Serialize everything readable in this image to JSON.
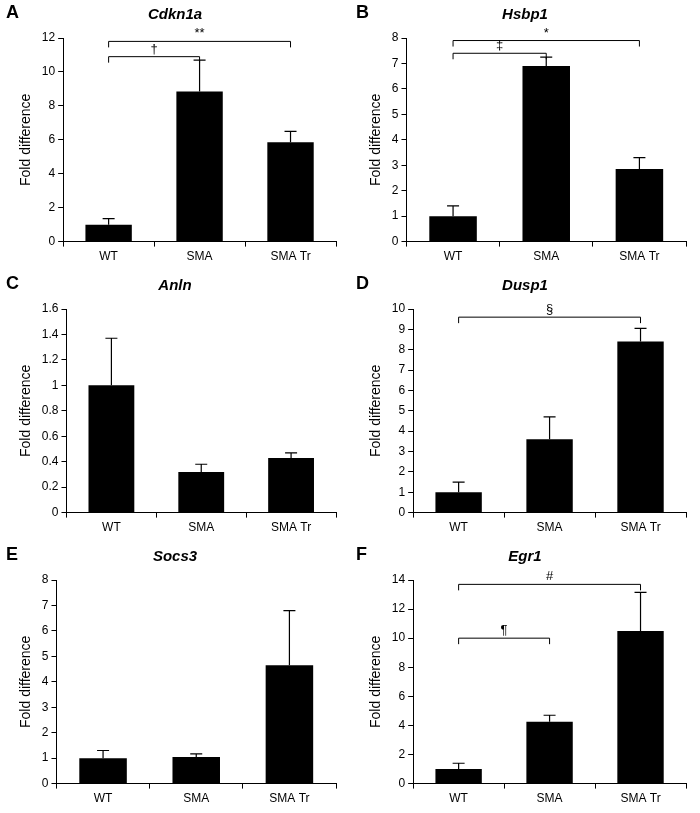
{
  "chart_data": [
    {
      "panel": "A",
      "title": "Cdkn1a",
      "type": "bar",
      "categories": [
        "WT",
        "SMA",
        "SMA Tr"
      ],
      "values": [
        1.0,
        8.85,
        5.85
      ],
      "errors": [
        0.35,
        1.85,
        0.65
      ],
      "color": "#000000",
      "y_label": "Fold difference",
      "ylim": [
        0,
        12
      ],
      "yticks": [
        0,
        2,
        4,
        6,
        8,
        10,
        12
      ],
      "grid": false,
      "significance": [
        {
          "from": "WT",
          "to": "SMA",
          "y": 10.9,
          "label": "†"
        },
        {
          "from": "WT",
          "to": "SMA Tr",
          "y": 11.8,
          "label": "**"
        }
      ]
    },
    {
      "panel": "B",
      "title": "Hsbp1",
      "type": "bar",
      "categories": [
        "WT",
        "SMA",
        "SMA Tr"
      ],
      "values": [
        1.0,
        6.9,
        2.85
      ],
      "errors": [
        0.4,
        0.35,
        0.45
      ],
      "color": "#000000",
      "y_label": "Fold difference",
      "ylim": [
        0,
        8
      ],
      "yticks": [
        0,
        1,
        2,
        3,
        4,
        5,
        6,
        7,
        8
      ],
      "grid": false,
      "significance": [
        {
          "from": "WT",
          "to": "SMA",
          "y": 7.4,
          "label": "‡"
        },
        {
          "from": "WT",
          "to": "SMA Tr",
          "y": 7.9,
          "label": "*"
        }
      ]
    },
    {
      "panel": "C",
      "title": "Anln",
      "type": "bar",
      "categories": [
        "WT",
        "SMA",
        "SMA Tr"
      ],
      "values": [
        1.0,
        0.32,
        0.43
      ],
      "errors": [
        0.37,
        0.06,
        0.04
      ],
      "color": "#000000",
      "y_label": "Fold difference",
      "ylim": [
        0,
        1.6
      ],
      "yticks": [
        0,
        0.2,
        0.4,
        0.6,
        0.8,
        1,
        1.2,
        1.4,
        1.6
      ],
      "grid": false,
      "significance": []
    },
    {
      "panel": "D",
      "title": "Dusp1",
      "type": "bar",
      "categories": [
        "WT",
        "SMA",
        "SMA Tr"
      ],
      "values": [
        1.0,
        3.6,
        8.4
      ],
      "errors": [
        0.5,
        1.1,
        0.65
      ],
      "color": "#000000",
      "y_label": "Fold difference",
      "ylim": [
        0,
        10
      ],
      "yticks": [
        0,
        1,
        2,
        3,
        4,
        5,
        6,
        7,
        8,
        9,
        10
      ],
      "grid": false,
      "significance": [
        {
          "from": "WT",
          "to": "SMA Tr",
          "y": 9.6,
          "label": "§"
        }
      ]
    },
    {
      "panel": "E",
      "title": "Socs3",
      "type": "bar",
      "categories": [
        "WT",
        "SMA",
        "SMA Tr"
      ],
      "values": [
        1.0,
        1.05,
        4.65
      ],
      "errors": [
        0.3,
        0.12,
        2.15
      ],
      "color": "#000000",
      "y_label": "Fold difference",
      "ylim": [
        0,
        8
      ],
      "yticks": [
        0,
        1,
        2,
        3,
        4,
        5,
        6,
        7,
        8
      ],
      "grid": false,
      "significance": []
    },
    {
      "panel": "F",
      "title": "Egr1",
      "type": "bar",
      "categories": [
        "WT",
        "SMA",
        "SMA Tr"
      ],
      "values": [
        1.0,
        4.25,
        10.5
      ],
      "errors": [
        0.4,
        0.45,
        2.65
      ],
      "color": "#000000",
      "y_label": "Fold difference",
      "ylim": [
        0,
        14
      ],
      "yticks": [
        0,
        2,
        4,
        6,
        8,
        10,
        12,
        14
      ],
      "grid": false,
      "significance": [
        {
          "from": "WT",
          "to": "SMA",
          "y": 10.0,
          "label": "¶"
        },
        {
          "from": "WT",
          "to": "SMA Tr",
          "y": 13.7,
          "label": "#"
        }
      ]
    }
  ]
}
